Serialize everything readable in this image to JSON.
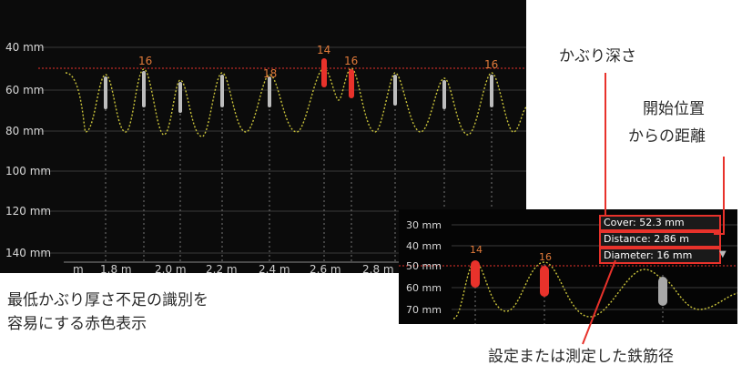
{
  "main_scan": {
    "depth_labels": [
      "40 mm",
      "60 mm",
      "80 mm",
      "100 mm",
      "120 mm",
      "140 mm"
    ],
    "distance_labels": [
      "m",
      "1.8 m",
      "2.0 m",
      "2.2 m",
      "2.4 m",
      "2.6 m",
      "2.8 m"
    ],
    "bar_labels": [
      "16",
      "18",
      "14",
      "16",
      "16"
    ]
  },
  "inset_scan": {
    "depth_labels": [
      "30 mm",
      "40 mm",
      "50 mm",
      "60 mm",
      "70 mm"
    ],
    "bar_labels": [
      "14",
      "16"
    ],
    "readouts": {
      "cover": "Cover: 52.3 mm",
      "distance": "Distance: 2.86 m",
      "diameter": "Diameter: 16 mm"
    },
    "dropdown_icon": "triangle-down-icon"
  },
  "annotations": {
    "cover_depth": "かぶり深さ",
    "distance_from_start": [
      "開始位置",
      "からの距離"
    ],
    "red_display": [
      "最低かぶり厚さ不足の識別を",
      "容易にする赤色表示"
    ],
    "rebar_diameter": "設定または測定した鉄筋径"
  },
  "colors": {
    "background": "#0b0b0b",
    "accent_red": "#e8322b",
    "wave_yellow": "#c9c23a",
    "label_orange": "#e07a3a"
  }
}
